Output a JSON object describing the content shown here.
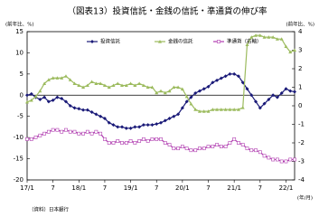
{
  "chart_data": {
    "type": "line",
    "title": "（図表13）投資信託・金銭の信託・準通貨の伸び率",
    "y_label": "(前年比、%)",
    "y2_label": "(前年比、%)",
    "x_label": "(年/月)",
    "source": "（資料）日本銀行",
    "categories": [
      "17/1",
      null,
      null,
      null,
      null,
      null,
      "7",
      null,
      null,
      null,
      null,
      null,
      "18/1",
      null,
      null,
      null,
      null,
      null,
      "7",
      null,
      null,
      null,
      null,
      null,
      "19/1",
      null,
      null,
      null,
      null,
      null,
      "7",
      null,
      null,
      null,
      null,
      null,
      "20/1",
      null,
      null,
      null,
      null,
      null,
      "7",
      null,
      null,
      null,
      null,
      null,
      "21/1",
      null,
      null,
      null,
      null,
      null,
      "7",
      null,
      null,
      null,
      null,
      null,
      "22/1",
      null,
      null
    ],
    "ylim": [
      -20,
      15
    ],
    "yticks": [
      -20,
      -15,
      -10,
      -5,
      0,
      5,
      10,
      15
    ],
    "y2lim": [
      -4,
      4
    ],
    "y2ticks": [
      -4,
      -3,
      -2,
      -1,
      0,
      1,
      2,
      3,
      4
    ],
    "legend": "top",
    "series": [
      {
        "name": "投資信託",
        "color": "#1a1a78",
        "marker": "diamond",
        "values": [
          0,
          0.3,
          -0.5,
          -1,
          -0.5,
          -1.5,
          -1.2,
          -0.5,
          -0.8,
          -1.5,
          -2.5,
          -3,
          -3.2,
          -3.5,
          -3.5,
          -4,
          -4.5,
          -5,
          -5.5,
          -6.5,
          -7,
          -7.5,
          -7.5,
          -7.8,
          -7.8,
          -7.5,
          -7.5,
          -7,
          -7,
          -7,
          -6.8,
          -6.5,
          -6,
          -5.5,
          -5,
          -4.5,
          -3,
          -1.5,
          -0.5,
          0.5,
          1,
          1.5,
          2,
          3,
          3.5,
          4,
          4.5,
          5,
          5,
          4.5,
          3,
          1.5,
          0,
          -1.5,
          -3,
          -2,
          -1,
          0,
          -0.5,
          0.5,
          1.5,
          1,
          0.8
        ]
      },
      {
        "name": "金銭の信託",
        "color": "#9cbb5e",
        "marker": "triangle",
        "axis": "y2",
        "values": [
          0.2,
          0.3,
          0.5,
          0.8,
          1.2,
          1.4,
          1.5,
          1.5,
          1.5,
          1.6,
          1.4,
          1.2,
          1.1,
          1.0,
          1.1,
          1.3,
          1.2,
          1.2,
          1.1,
          1.0,
          1.1,
          1.2,
          1.1,
          1.1,
          1.2,
          1.1,
          1.2,
          1.1,
          1.0,
          1.0,
          0.7,
          0.8,
          0.7,
          0.8,
          1.0,
          1.0,
          0.9,
          0.5,
          0.1,
          -0.2,
          -0.3,
          -0.3,
          -0.3,
          -0.2,
          -0.2,
          -0.2,
          -0.2,
          -0.2,
          -0.2,
          -0.2,
          -0.1,
          3.3,
          3.7,
          3.8,
          3.8,
          3.7,
          3.7,
          3.7,
          3.6,
          3.6,
          3.2,
          2.9,
          3.0
        ]
      },
      {
        "name": "準通貨（右軸）",
        "color": "#b03cb0",
        "marker": "square",
        "axis": "y2",
        "values": [
          -1.8,
          -1.8,
          -1.7,
          -1.6,
          -1.5,
          -1.4,
          -1.3,
          -1.3,
          -1.4,
          -1.3,
          -1.4,
          -1.4,
          -1.5,
          -1.5,
          -1.4,
          -1.5,
          -1.4,
          -1.5,
          -1.8,
          -2.0,
          -2.0,
          -1.9,
          -2.0,
          -2.0,
          -1.9,
          -2.0,
          -1.9,
          -1.8,
          -1.9,
          -1.8,
          -1.8,
          -1.8,
          -2.0,
          -2.1,
          -2.3,
          -2.3,
          -2.2,
          -2.3,
          -2.4,
          -2.4,
          -2.3,
          -2.3,
          -2.2,
          -2.2,
          -2.1,
          -2.2,
          -2.2,
          -2.0,
          -1.8,
          -2.0,
          -2.1,
          -2.3,
          -2.4,
          -2.4,
          -2.5,
          -2.7,
          -2.8,
          -2.9,
          -2.9,
          -3.0,
          -3.0,
          -2.9,
          -2.9
        ]
      }
    ]
  }
}
